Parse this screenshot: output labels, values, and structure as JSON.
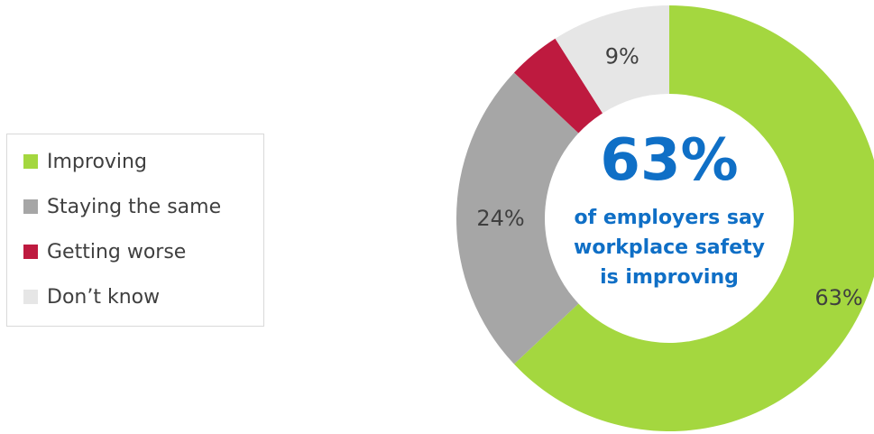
{
  "chart_data": {
    "type": "pie",
    "variant": "donut",
    "categories": [
      "Improving",
      "Staying the same",
      "Getting worse",
      "Don’t know"
    ],
    "values": [
      63,
      24,
      4,
      9
    ],
    "data_labels": [
      "63%",
      "24%",
      "",
      "9%"
    ],
    "colors": [
      "#a4d73f",
      "#a6a6a6",
      "#be1a3f",
      "#e6e6e6"
    ],
    "center_text": {
      "headline": "63%",
      "lines": [
        "of employers say",
        "workplace safety",
        "is improving"
      ]
    },
    "legend_position": "left"
  }
}
